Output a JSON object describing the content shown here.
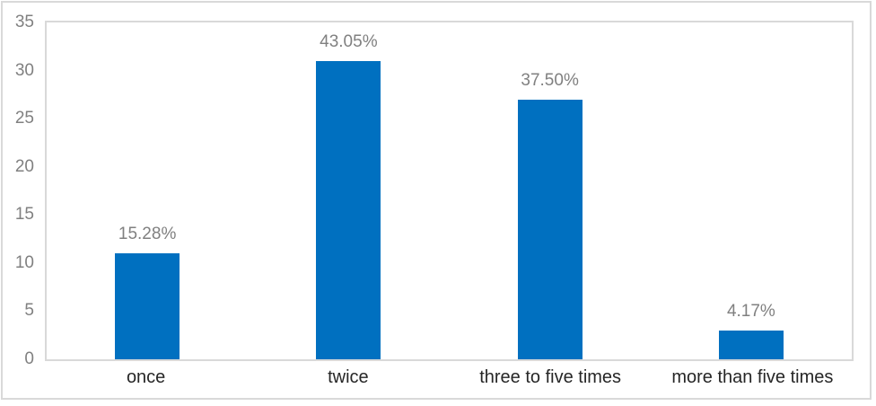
{
  "chart_data": {
    "type": "bar",
    "title": "",
    "xlabel": "",
    "ylabel": "",
    "categories": [
      "once",
      "twice",
      "three to five times",
      "more than five times"
    ],
    "values": [
      11,
      31,
      27,
      3
    ],
    "data_labels": [
      "15.28%",
      "43.05%",
      "37.50%",
      "4.17%"
    ],
    "ylim": [
      0,
      35
    ],
    "yticks": [
      0,
      5,
      10,
      15,
      20,
      25,
      30,
      35
    ],
    "grid": false,
    "legend": false,
    "colors": {
      "bar_fill": "#0070c0",
      "data_label_text": "#808080",
      "y_tick_text": "#808080",
      "x_label_text": "#262626",
      "plot_border": "#d9d9d9",
      "frame_border": "#d9d9d9",
      "background": "#ffffff"
    }
  }
}
